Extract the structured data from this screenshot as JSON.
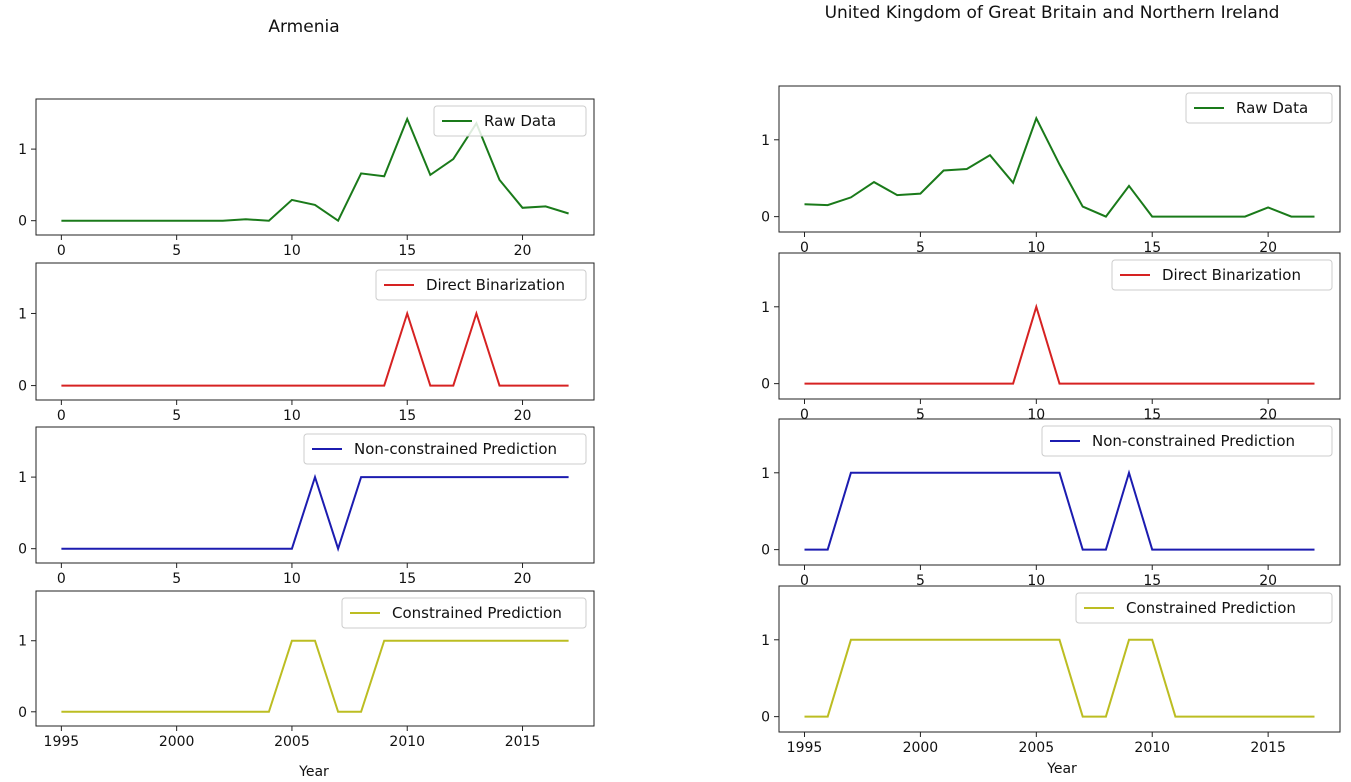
{
  "figure": {
    "left_title": "Armenia",
    "right_title": "United Kingdom of Great Britain and Northern Ireland",
    "xlabel": "Year"
  },
  "chart_data": [
    {
      "type": "line",
      "title": "Armenia",
      "ylim": [
        -0.2,
        1.7
      ],
      "yticks": [
        0,
        1
      ],
      "legend_position": "top-right",
      "x": [
        0,
        1,
        2,
        3,
        4,
        5,
        6,
        7,
        8,
        9,
        10,
        11,
        12,
        13,
        14,
        15,
        16,
        17,
        18,
        19,
        20,
        21,
        22
      ],
      "xticks": [
        0,
        5,
        10,
        15,
        20
      ],
      "xlim": [
        -1.1,
        23.1
      ],
      "series": [
        {
          "name": "Raw Data",
          "color": "#1a7a1a",
          "values": [
            0,
            0,
            0,
            0,
            0,
            0,
            0,
            0,
            0.02,
            0,
            0.29,
            0.22,
            0,
            0.66,
            0.62,
            1.42,
            0.64,
            0.86,
            1.36,
            0.57,
            0.18,
            0.2,
            0.1
          ]
        }
      ]
    },
    {
      "type": "line",
      "title": "",
      "ylim": [
        -0.2,
        1.7
      ],
      "yticks": [
        0,
        1
      ],
      "legend_position": "top-right",
      "x": [
        0,
        1,
        2,
        3,
        4,
        5,
        6,
        7,
        8,
        9,
        10,
        11,
        12,
        13,
        14,
        15,
        16,
        17,
        18,
        19,
        20,
        21,
        22
      ],
      "xticks": [
        0,
        5,
        10,
        15,
        20
      ],
      "xlim": [
        -1.1,
        23.1
      ],
      "series": [
        {
          "name": "Direct Binarization",
          "color": "#d62222",
          "values": [
            0,
            0,
            0,
            0,
            0,
            0,
            0,
            0,
            0,
            0,
            0,
            0,
            0,
            0,
            0,
            1,
            0,
            0,
            1,
            0,
            0,
            0,
            0
          ]
        }
      ]
    },
    {
      "type": "line",
      "title": "",
      "ylim": [
        -0.2,
        1.7
      ],
      "yticks": [
        0,
        1
      ],
      "legend_position": "top-right",
      "x": [
        0,
        1,
        2,
        3,
        4,
        5,
        6,
        7,
        8,
        9,
        10,
        11,
        12,
        13,
        14,
        15,
        16,
        17,
        18,
        19,
        20,
        21,
        22
      ],
      "xticks": [
        0,
        5,
        10,
        15,
        20
      ],
      "xlim": [
        -1.1,
        23.1
      ],
      "series": [
        {
          "name": "Non-constrained Prediction",
          "color": "#1c1cb0",
          "values": [
            0,
            0,
            0,
            0,
            0,
            0,
            0,
            0,
            0,
            0,
            0,
            1,
            0,
            1,
            1,
            1,
            1,
            1,
            1,
            1,
            1,
            1,
            1
          ]
        }
      ]
    },
    {
      "type": "line",
      "title": "",
      "ylim": [
        -0.2,
        1.7
      ],
      "yticks": [
        0,
        1
      ],
      "legend_position": "top-right",
      "x": [
        1995,
        1996,
        1997,
        1998,
        1999,
        2000,
        2001,
        2002,
        2003,
        2004,
        2005,
        2006,
        2007,
        2008,
        2009,
        2010,
        2011,
        2012,
        2013,
        2014,
        2015,
        2016,
        2017
      ],
      "xticks": [
        1995,
        2000,
        2005,
        2010,
        2015
      ],
      "xlim": [
        1993.9,
        2018.1
      ],
      "xlabel": "Year",
      "series": [
        {
          "name": "Constrained Prediction",
          "color": "#bcbd22",
          "values": [
            0,
            0,
            0,
            0,
            0,
            0,
            0,
            0,
            0,
            0,
            1,
            1,
            0,
            0,
            1,
            1,
            1,
            1,
            1,
            1,
            1,
            1,
            1
          ]
        }
      ]
    },
    {
      "type": "line",
      "title": "United Kingdom of Great Britain and Northern Ireland",
      "ylim": [
        -0.2,
        1.7
      ],
      "yticks": [
        0,
        1
      ],
      "legend_position": "top-right",
      "x": [
        0,
        1,
        2,
        3,
        4,
        5,
        6,
        7,
        8,
        9,
        10,
        11,
        12,
        13,
        14,
        15,
        16,
        17,
        18,
        19,
        20,
        21,
        22
      ],
      "xticks": [
        0,
        5,
        10,
        15,
        20
      ],
      "xlim": [
        -1.1,
        23.1
      ],
      "series": [
        {
          "name": "Raw Data",
          "color": "#1a7a1a",
          "values": [
            0.16,
            0.15,
            0.25,
            0.45,
            0.28,
            0.3,
            0.6,
            0.62,
            0.8,
            0.44,
            1.28,
            0.68,
            0.13,
            0,
            0.4,
            0,
            0,
            0,
            0,
            0,
            0.12,
            0,
            0
          ]
        }
      ]
    },
    {
      "type": "line",
      "title": "",
      "ylim": [
        -0.2,
        1.7
      ],
      "yticks": [
        0,
        1
      ],
      "legend_position": "top-right",
      "x": [
        0,
        1,
        2,
        3,
        4,
        5,
        6,
        7,
        8,
        9,
        10,
        11,
        12,
        13,
        14,
        15,
        16,
        17,
        18,
        19,
        20,
        21,
        22
      ],
      "xticks": [
        0,
        5,
        10,
        15,
        20
      ],
      "xlim": [
        -1.1,
        23.1
      ],
      "series": [
        {
          "name": "Direct Binarization",
          "color": "#d62222",
          "values": [
            0,
            0,
            0,
            0,
            0,
            0,
            0,
            0,
            0,
            0,
            1,
            0,
            0,
            0,
            0,
            0,
            0,
            0,
            0,
            0,
            0,
            0,
            0
          ]
        }
      ]
    },
    {
      "type": "line",
      "title": "",
      "ylim": [
        -0.2,
        1.7
      ],
      "yticks": [
        0,
        1
      ],
      "legend_position": "top-right",
      "x": [
        0,
        1,
        2,
        3,
        4,
        5,
        6,
        7,
        8,
        9,
        10,
        11,
        12,
        13,
        14,
        15,
        16,
        17,
        18,
        19,
        20,
        21,
        22
      ],
      "xticks": [
        0,
        5,
        10,
        15,
        20
      ],
      "xlim": [
        -1.1,
        23.1
      ],
      "series": [
        {
          "name": "Non-constrained Prediction",
          "color": "#1c1cb0",
          "values": [
            0,
            0,
            1,
            1,
            1,
            1,
            1,
            1,
            1,
            1,
            1,
            1,
            0,
            0,
            1,
            0,
            0,
            0,
            0,
            0,
            0,
            0,
            0
          ]
        }
      ]
    },
    {
      "type": "line",
      "title": "",
      "ylim": [
        -0.2,
        1.7
      ],
      "yticks": [
        0,
        1
      ],
      "legend_position": "top-right",
      "x": [
        1995,
        1996,
        1997,
        1998,
        1999,
        2000,
        2001,
        2002,
        2003,
        2004,
        2005,
        2006,
        2007,
        2008,
        2009,
        2010,
        2011,
        2012,
        2013,
        2014,
        2015,
        2016,
        2017
      ],
      "xticks": [
        1995,
        2000,
        2005,
        2010,
        2015
      ],
      "xlim": [
        1993.9,
        2018.1
      ],
      "xlabel": "Year",
      "series": [
        {
          "name": "Constrained Prediction",
          "color": "#bcbd22",
          "values": [
            0,
            0,
            1,
            1,
            1,
            1,
            1,
            1,
            1,
            1,
            1,
            1,
            0,
            0,
            1,
            1,
            0,
            0,
            0,
            0,
            0,
            0,
            0
          ]
        }
      ]
    }
  ]
}
